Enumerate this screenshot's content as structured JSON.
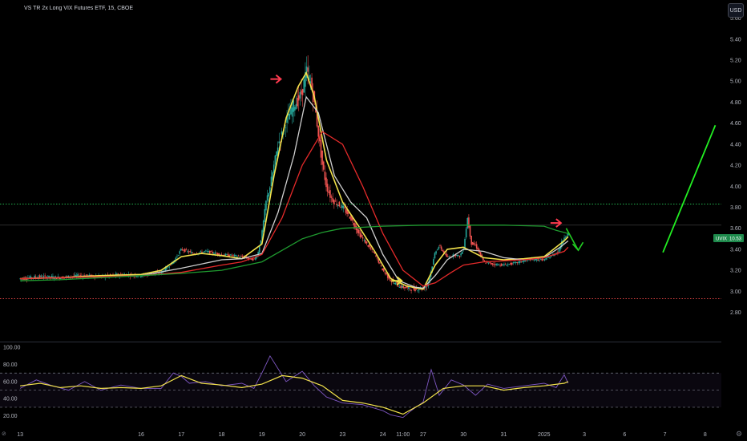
{
  "header": {
    "title": "VS TR 2x Long VIX Futures ETF, 15, CBOE",
    "currency_label": "USD"
  },
  "price_tag": {
    "symbol": "UVIX",
    "value": "10.53",
    "color": "#1e8a4c"
  },
  "chart_data": [
    {
      "type": "candlestick",
      "title": "VS TR 2x Long VIX Futures ETF, 15, CBOE",
      "y_ticks": [
        "5.60",
        "5.40",
        "5.20",
        "5.00",
        "4.80",
        "4.60",
        "4.40",
        "4.20",
        "4.00",
        "3.80",
        "3.60",
        "3.40",
        "3.20",
        "3.00",
        "2.80"
      ],
      "y_tick_values": [
        5.6,
        5.4,
        5.2,
        5.0,
        4.8,
        4.6,
        4.4,
        4.2,
        4.0,
        3.8,
        3.6,
        3.4,
        3.2,
        3.0,
        2.8
      ],
      "ylim": [
        2.72,
        5.62
      ],
      "x_ticks": [
        "13",
        "16",
        "17",
        "18",
        "19",
        "20",
        "23",
        "24",
        "11:00",
        "27",
        "30",
        "31",
        "2025",
        "3",
        "6",
        "7",
        "8"
      ],
      "x_tick_positions": [
        0,
        3,
        4,
        5,
        6,
        7,
        8,
        9,
        9.5,
        10,
        11,
        12,
        13,
        14,
        15,
        16,
        17
      ],
      "xlim": [
        -0.5,
        17.4
      ],
      "horizontal_levels": [
        {
          "value": 3.83,
          "color": "#22b14c",
          "style": "dotted"
        },
        {
          "value": 2.93,
          "color": "#d94040",
          "style": "dotted"
        },
        {
          "value": 3.63,
          "color": "#3a3a3a",
          "style": "solid"
        }
      ],
      "price_x": [
        0,
        0.5,
        1,
        1.5,
        2,
        2.5,
        3,
        3.5,
        3.8,
        4,
        4.3,
        4.6,
        5,
        5.3,
        5.6,
        5.8,
        5.9,
        6,
        6.1,
        6.2,
        6.3,
        6.4,
        6.5,
        6.6,
        6.7,
        6.8,
        6.9,
        7,
        7.1,
        7.2,
        7.3,
        7.4,
        7.5,
        7.6,
        7.7,
        7.8,
        8,
        8.2,
        8.4,
        8.6,
        8.8,
        9,
        9.2,
        9.4,
        9.6,
        9.8,
        10,
        10.1,
        10.2,
        10.3,
        10.4,
        10.6,
        10.8,
        10.9,
        11,
        11.1,
        11.2,
        11.3,
        11.5,
        11.7,
        12,
        12.3,
        12.6,
        13,
        13.2,
        13.35,
        13.5,
        13.6
      ],
      "price_y": [
        3.12,
        3.14,
        3.13,
        3.15,
        3.14,
        3.16,
        3.15,
        3.18,
        3.28,
        3.4,
        3.36,
        3.38,
        3.35,
        3.34,
        3.32,
        3.3,
        3.36,
        3.55,
        3.85,
        4.0,
        4.2,
        4.4,
        4.5,
        4.62,
        4.7,
        4.78,
        4.82,
        4.9,
        5.1,
        5.0,
        4.8,
        4.5,
        4.2,
        4.0,
        3.9,
        3.85,
        3.8,
        3.7,
        3.55,
        3.45,
        3.35,
        3.2,
        3.1,
        3.05,
        3.03,
        3.02,
        3.03,
        3.05,
        3.2,
        3.38,
        3.43,
        3.32,
        3.35,
        3.33,
        3.4,
        3.7,
        3.45,
        3.44,
        3.28,
        3.26,
        3.25,
        3.27,
        3.3,
        3.3,
        3.34,
        3.38,
        3.52,
        3.55
      ],
      "series": [
        {
          "values_x": [
            0,
            1,
            2,
            3,
            3.5,
            4,
            4.5,
            5,
            5.5,
            6,
            6.3,
            6.6,
            6.9,
            7.1,
            7.3,
            7.6,
            8,
            8.4,
            8.8,
            9.2,
            9.6,
            10,
            10.3,
            10.6,
            11,
            11.5,
            12,
            12.5,
            13,
            13.5,
            13.6
          ],
          "values": [
            3.12,
            3.13,
            3.15,
            3.16,
            3.2,
            3.33,
            3.36,
            3.34,
            3.31,
            3.45,
            4.1,
            4.65,
            4.95,
            5.08,
            4.85,
            4.25,
            3.85,
            3.62,
            3.38,
            3.12,
            3.05,
            3.02,
            3.25,
            3.4,
            3.42,
            3.32,
            3.3,
            3.31,
            3.33,
            3.48,
            3.52
          ],
          "color": "#f2e24b"
        },
        {
          "values_x": [
            0,
            1,
            2,
            3,
            4,
            5,
            5.5,
            6,
            6.4,
            6.8,
            7.1,
            7.4,
            7.8,
            8.2,
            8.6,
            9,
            9.4,
            9.8,
            10,
            10.3,
            10.6,
            11,
            11.5,
            12,
            12.5,
            13,
            13.4,
            13.6
          ],
          "values": [
            3.12,
            3.13,
            3.14,
            3.15,
            3.22,
            3.3,
            3.31,
            3.36,
            3.75,
            4.3,
            4.85,
            4.7,
            4.1,
            3.85,
            3.7,
            3.35,
            3.1,
            3.04,
            3.03,
            3.15,
            3.3,
            3.4,
            3.38,
            3.32,
            3.3,
            3.32,
            3.42,
            3.48
          ],
          "color": "#cfcfcf"
        },
        {
          "values_x": [
            0,
            1,
            2,
            3,
            4,
            5,
            5.5,
            6,
            6.5,
            7,
            7.5,
            8,
            8.5,
            9,
            9.5,
            10,
            10.3,
            10.7,
            11,
            11.5,
            12,
            12.5,
            13,
            13.5,
            13.6
          ],
          "values": [
            3.12,
            3.13,
            3.14,
            3.15,
            3.18,
            3.25,
            3.28,
            3.35,
            3.7,
            4.2,
            4.52,
            4.4,
            4.0,
            3.55,
            3.2,
            3.05,
            3.08,
            3.18,
            3.25,
            3.28,
            3.29,
            3.3,
            3.32,
            3.38,
            3.42
          ],
          "color": "#e52a2a"
        },
        {
          "values_x": [
            0,
            1,
            2,
            3,
            4,
            5,
            6,
            7,
            7.5,
            8,
            9,
            10,
            11,
            12,
            13,
            13.3,
            13.6
          ],
          "values": [
            3.1,
            3.11,
            3.13,
            3.15,
            3.17,
            3.2,
            3.28,
            3.5,
            3.56,
            3.6,
            3.62,
            3.63,
            3.63,
            3.63,
            3.62,
            3.58,
            3.55
          ],
          "color": "#1f9a2f"
        }
      ],
      "annotations": [
        {
          "type": "arrow-right",
          "x": 6.35,
          "y": 5.02,
          "color": "#ff3b4f"
        },
        {
          "type": "arrow-right",
          "x": 9.35,
          "y": 3.1,
          "color": "#f2e24b"
        },
        {
          "type": "arrow-right",
          "x": 13.3,
          "y": 3.65,
          "color": "#ff3b4f"
        },
        {
          "type": "arrow-down",
          "x0": 13.55,
          "y0": 3.6,
          "x1": 13.85,
          "y1": 3.39,
          "color": "#22cc22"
        },
        {
          "type": "line",
          "x0": 15.95,
          "y0": 3.37,
          "x1": 17.25,
          "y1": 4.58,
          "color": "#22ee22"
        }
      ]
    },
    {
      "type": "line",
      "y_ticks": [
        "100.00",
        "80.00",
        "60.00",
        "40.00",
        "20.00"
      ],
      "y_tick_values": [
        100,
        80,
        60,
        40,
        20
      ],
      "ylim": [
        14,
        103
      ],
      "bands": [
        70,
        50,
        30
      ],
      "series": [
        {
          "values_x": [
            0,
            0.4,
            0.8,
            1.2,
            1.6,
            2,
            2.5,
            3,
            3.5,
            3.8,
            4,
            4.2,
            4.6,
            5,
            5.5,
            5.8,
            6,
            6.2,
            6.6,
            7,
            7.3,
            7.6,
            8,
            8.5,
            9,
            9.2,
            9.5,
            9.7,
            10,
            10.2,
            10.4,
            10.7,
            11,
            11.3,
            11.6,
            12,
            12.5,
            13,
            13.3,
            13.5,
            13.6
          ],
          "values": [
            52,
            62,
            55,
            50,
            60,
            50,
            56,
            52,
            52,
            70,
            66,
            58,
            60,
            55,
            58,
            52,
            70,
            90,
            60,
            72,
            55,
            42,
            35,
            33,
            26,
            21,
            18,
            26,
            36,
            74,
            44,
            62,
            56,
            44,
            57,
            52,
            55,
            58,
            53,
            68,
            58
          ],
          "color": "#7e57c2"
        },
        {
          "values_x": [
            0,
            0.5,
            1,
            1.5,
            2,
            2.5,
            3,
            3.5,
            4,
            4.5,
            5,
            5.5,
            6,
            6.5,
            7,
            7.5,
            8,
            8.5,
            9,
            9.5,
            10,
            10.5,
            11,
            11.5,
            12,
            12.5,
            13,
            13.5,
            13.6
          ],
          "values": [
            55,
            58,
            53,
            55,
            52,
            53,
            52,
            55,
            67,
            58,
            56,
            53,
            57,
            67,
            64,
            55,
            38,
            35,
            30,
            22,
            35,
            52,
            55,
            55,
            50,
            53,
            55,
            58,
            60
          ],
          "color": "#f2e24b"
        }
      ]
    }
  ]
}
